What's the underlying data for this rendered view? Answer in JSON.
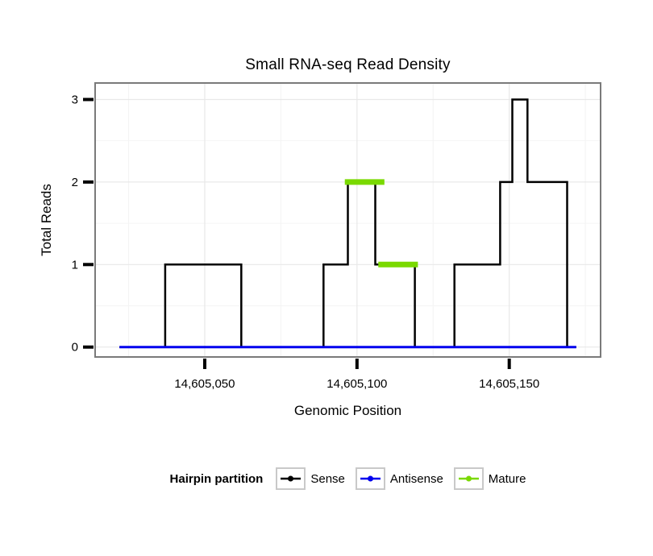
{
  "title": "Small RNA-seq Read Density",
  "chart_data": {
    "type": "line",
    "title": "Small RNA-seq Read Density",
    "xlabel": "Genomic Position",
    "ylabel": "Total Reads",
    "xlim": [
      14605014,
      14605180
    ],
    "ylim": [
      -0.12,
      3.2
    ],
    "grid": true,
    "legend_position": "bottom",
    "xticks": [
      {
        "value": 14605050,
        "label": "14,605,050"
      },
      {
        "value": 14605100,
        "label": "14,605,100"
      },
      {
        "value": 14605150,
        "label": "14,605,150"
      }
    ],
    "yticks": [
      {
        "value": 0,
        "label": "0"
      },
      {
        "value": 1,
        "label": "1"
      },
      {
        "value": 2,
        "label": "2"
      },
      {
        "value": 3,
        "label": "3"
      }
    ],
    "minor_xticks": [
      14605025,
      14605075,
      14605125,
      14605175
    ],
    "minor_yticks": [
      0.5,
      1.5,
      2.5
    ],
    "series": [
      {
        "name": "Sense",
        "color": "#000000",
        "width": 2.5,
        "type": "step",
        "points": [
          [
            14605022,
            0
          ],
          [
            14605037,
            0
          ],
          [
            14605037,
            1
          ],
          [
            14605062,
            1
          ],
          [
            14605062,
            0
          ],
          [
            14605089,
            0
          ],
          [
            14605089,
            1
          ],
          [
            14605097,
            1
          ],
          [
            14605097,
            2
          ],
          [
            14605106,
            2
          ],
          [
            14605106,
            1
          ],
          [
            14605119,
            1
          ],
          [
            14605119,
            0
          ],
          [
            14605132,
            0
          ],
          [
            14605132,
            1
          ],
          [
            14605147,
            1
          ],
          [
            14605147,
            2
          ],
          [
            14605151,
            2
          ],
          [
            14605151,
            3
          ],
          [
            14605156,
            3
          ],
          [
            14605156,
            2
          ],
          [
            14605169,
            2
          ],
          [
            14605169,
            0
          ],
          [
            14605172,
            0
          ]
        ]
      },
      {
        "name": "Antisense",
        "color": "#0000EE",
        "width": 3,
        "type": "line",
        "points": [
          [
            14605022,
            0
          ],
          [
            14605172,
            0
          ]
        ]
      },
      {
        "name": "Mature",
        "color": "#7AD900",
        "width": 7,
        "type": "segments",
        "segments": [
          {
            "x1": 14605096,
            "x2": 14605109,
            "y": 2
          },
          {
            "x1": 14605107,
            "x2": 14605120,
            "y": 1
          }
        ]
      }
    ]
  },
  "legend": {
    "title": "Hairpin partition",
    "items": [
      {
        "label": "Sense",
        "color": "#000000"
      },
      {
        "label": "Antisense",
        "color": "#0000EE"
      },
      {
        "label": "Mature",
        "color": "#7AD900"
      }
    ]
  },
  "style": {
    "panel_border": "#7a7a7a",
    "grid_major": "#e8e8e8",
    "grid_minor": "#f4f4f4",
    "tick_color": "#000000"
  }
}
